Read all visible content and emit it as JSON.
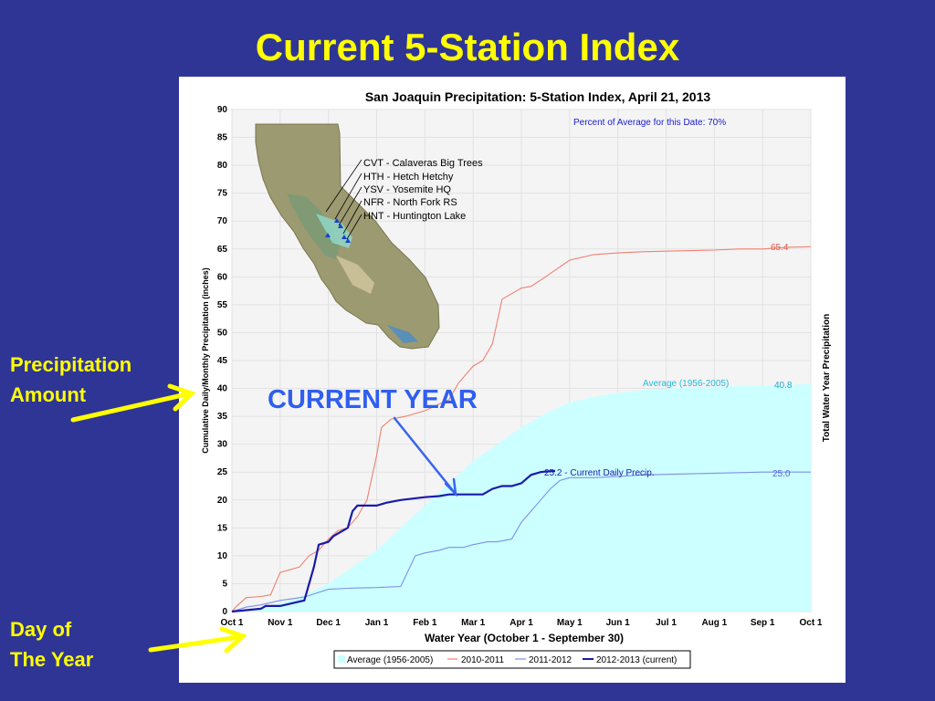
{
  "slide": {
    "title": "Current 5-Station Index",
    "label_precip_line1": "Precipitation",
    "label_precip_line2": "Amount",
    "label_day_line1": "Day of",
    "label_day_line2": "The Year",
    "current_year": "CURRENT YEAR",
    "colors": {
      "background": "#2f3595",
      "accent": "#ffff00",
      "current_year": "#2f5ef0"
    }
  },
  "map_legend": [
    "CVT - Calaveras Big Trees",
    "HTH - Hetch Hetchy",
    "YSV - Yosemite HQ",
    "NFR - North Fork RS",
    "HNT - Huntington Lake"
  ],
  "chart_data": {
    "type": "line",
    "title": "San Joaquin Precipitation: 5-Station Index, April 21, 2013",
    "subtitle": "Percent of Average for this Date: 70%",
    "xlabel": "Water Year (October 1 - September 30)",
    "ylabel": "Cumulative Daily/Monthly Precipitation (inches)",
    "ylabel_right": "Total Water Year Precipitation",
    "xlim": [
      0,
      12
    ],
    "ylim": [
      0,
      90
    ],
    "x_ticks": [
      "Oct 1",
      "Nov 1",
      "Dec 1",
      "Jan 1",
      "Feb 1",
      "Mar 1",
      "Apr 1",
      "May 1",
      "Jun 1",
      "Jul 1",
      "Aug 1",
      "Sep 1",
      "Oct 1"
    ],
    "y_ticks": [
      0,
      5,
      10,
      15,
      20,
      25,
      30,
      35,
      40,
      45,
      50,
      55,
      60,
      65,
      70,
      75,
      80,
      85,
      90
    ],
    "grid": true,
    "legend_position": "bottom",
    "legend": [
      "Average (1956-2005)",
      "2010-2011",
      "2011-2012",
      "2012-2013 (current)"
    ],
    "series": [
      {
        "name": "Average (1956-2005)",
        "color": "#ccffff",
        "style": "area",
        "x": [
          0,
          0.5,
          1,
          1.5,
          2,
          2.5,
          3,
          3.5,
          4,
          4.5,
          5,
          5.5,
          6,
          6.5,
          7,
          7.5,
          8,
          8.5,
          9,
          9.5,
          10,
          10.5,
          11,
          11.5,
          12
        ],
        "y": [
          0,
          0.5,
          1.5,
          3,
          5,
          8,
          11,
          15,
          19,
          23,
          27,
          30,
          33,
          35.5,
          37.5,
          38.5,
          39.2,
          39.7,
          40,
          40.2,
          40.3,
          40.4,
          40.5,
          40.6,
          40.8
        ]
      },
      {
        "name": "2010-2011",
        "color": "#f08070",
        "style": "line",
        "x": [
          0,
          0.1,
          0.3,
          0.6,
          0.8,
          1,
          1.2,
          1.4,
          1.6,
          1.8,
          2,
          2.2,
          2.4,
          2.6,
          2.8,
          3,
          3.1,
          3.3,
          3.6,
          4,
          4.5,
          4.7,
          5,
          5.2,
          5.4,
          5.6,
          5.8,
          6,
          6.2,
          6.5,
          7,
          7.5,
          8,
          8.5,
          9,
          9.5,
          10,
          10.5,
          11,
          11.5,
          12
        ],
        "y": [
          0,
          1,
          2.5,
          2.7,
          3,
          7,
          7.5,
          8,
          10,
          11,
          13,
          14.5,
          15,
          17,
          20,
          28,
          33,
          34.5,
          35,
          36,
          38,
          41,
          44,
          45,
          48,
          56,
          57,
          58,
          58.3,
          60,
          63,
          64,
          64.3,
          64.5,
          64.6,
          64.7,
          64.8,
          65,
          65,
          65.3,
          65.4
        ]
      },
      {
        "name": "2011-2012",
        "color": "#7f8fe8",
        "style": "line",
        "x": [
          0,
          0.3,
          0.6,
          1,
          1.5,
          2,
          2.5,
          3,
          3.5,
          3.8,
          4,
          4.3,
          4.5,
          4.8,
          5,
          5.3,
          5.5,
          5.8,
          6,
          6.2,
          6.4,
          6.6,
          6.8,
          7,
          7.5,
          8,
          8.5,
          9,
          9.5,
          10,
          10.5,
          11,
          11.5,
          12
        ],
        "y": [
          0,
          0.8,
          1.2,
          2,
          2.6,
          4,
          4.2,
          4.3,
          4.5,
          10,
          10.5,
          11,
          11.5,
          11.5,
          12,
          12.5,
          12.5,
          13,
          16,
          18,
          20,
          22,
          23.5,
          24,
          24,
          24.2,
          24.5,
          24.6,
          24.7,
          24.8,
          24.9,
          25,
          25,
          25
        ]
      },
      {
        "name": "2012-2013 (current)",
        "color": "#1a1aaa",
        "style": "line",
        "x": [
          0,
          0.6,
          0.7,
          1,
          1.5,
          1.7,
          1.8,
          2,
          2.1,
          2.2,
          2.3,
          2.4,
          2.5,
          2.6,
          2.8,
          3,
          3.2,
          3.5,
          4,
          4.3,
          4.5,
          5,
          5.2,
          5.4,
          5.6,
          5.8,
          6,
          6.2,
          6.4,
          6.5,
          6.7
        ],
        "y": [
          0,
          0.5,
          1,
          1,
          2,
          8,
          12,
          12.5,
          13.5,
          14,
          14.5,
          15,
          18,
          19,
          19,
          19,
          19.5,
          20,
          20.5,
          20.7,
          21,
          21,
          21,
          22,
          22.5,
          22.5,
          23,
          24.5,
          25,
          25.1,
          25.2
        ]
      }
    ],
    "annotations": [
      {
        "series": "Average (1956-2005)",
        "text": "Average (1956-2005)",
        "end_value": "40.8"
      },
      {
        "series": "2010-2011",
        "end_value": "65.4"
      },
      {
        "series": "2011-2012",
        "end_value": "25.0"
      },
      {
        "series": "2012-2013 (current)",
        "text": "25.2 -  Current Daily Precip."
      }
    ]
  }
}
